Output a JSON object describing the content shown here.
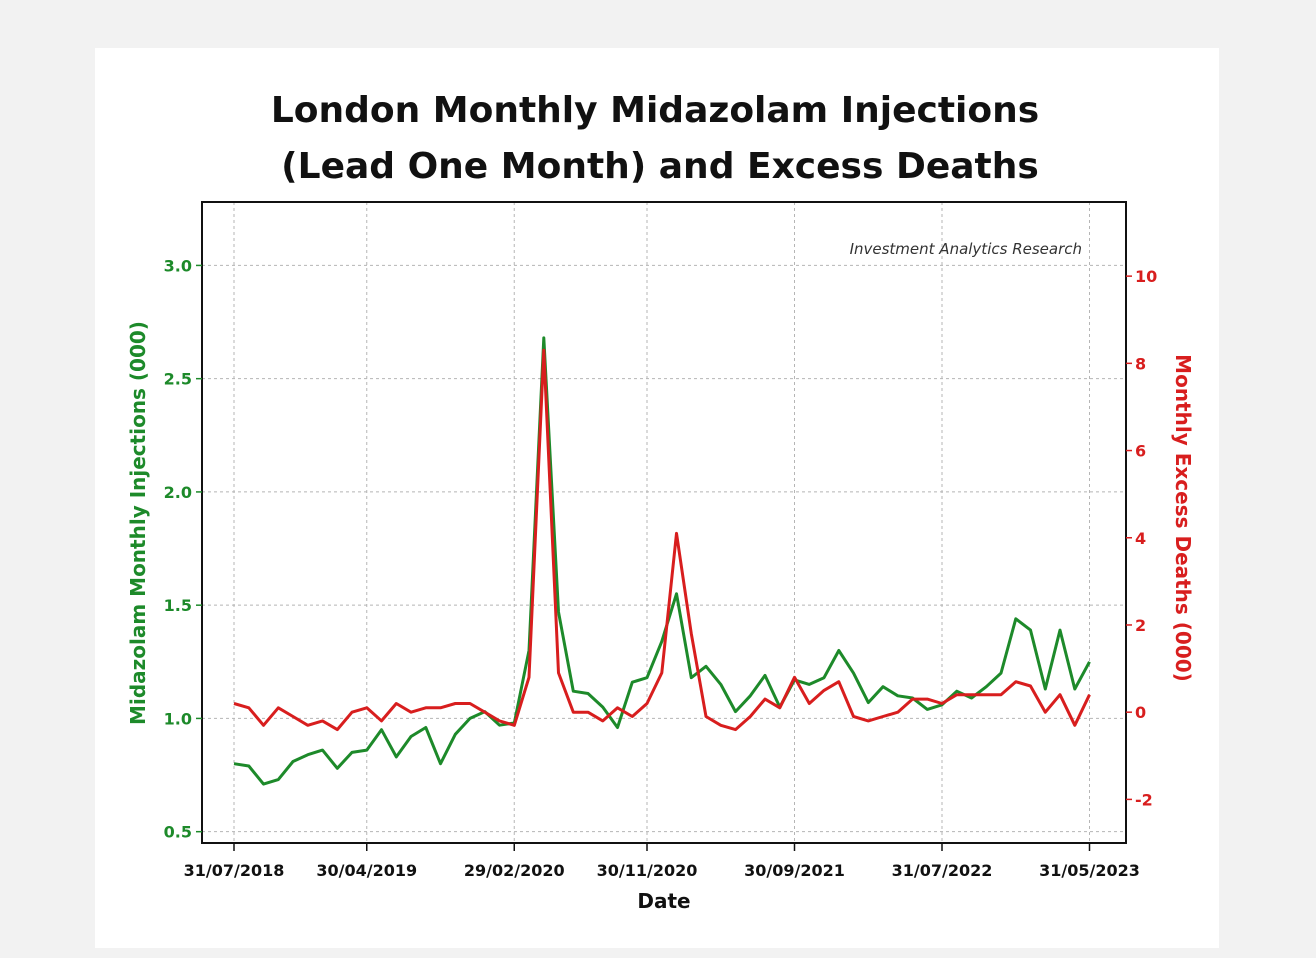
{
  "chart_data": {
    "type": "line",
    "title": [
      "London Monthly Midazolam Injections",
      "(Lead One Month) and Excess Deaths"
    ],
    "watermark": "Investment Analytics Research",
    "xlabel": "Date",
    "ylabel_left": "Midazolam Monthly Injections (000)",
    "ylabel_right": "Monthly Excess Deaths (000)",
    "x_ticks": [
      "31/07/2018",
      "30/04/2019",
      "29/02/2020",
      "30/11/2020",
      "30/09/2021",
      "31/07/2022",
      "31/05/2023"
    ],
    "x_tick_index": [
      0,
      9,
      19,
      28,
      38,
      48,
      58
    ],
    "y_left": {
      "ticks": [
        "0.5",
        "1.0",
        "1.5",
        "2.0",
        "2.5",
        "3.0"
      ],
      "tick_values": [
        0.5,
        1.0,
        1.5,
        2.0,
        2.5,
        3.0
      ],
      "range": [
        0.45,
        3.28
      ]
    },
    "y_right": {
      "ticks": [
        "-2",
        "0",
        "2",
        "4",
        "6",
        "8",
        "10"
      ],
      "tick_values": [
        -2,
        0,
        2,
        4,
        6,
        8,
        10
      ],
      "range": [
        -3.0,
        11.7
      ]
    },
    "grid": true,
    "colors": {
      "injections": "#1d8a2a",
      "deaths": "#d81e1e"
    },
    "series": [
      {
        "name": "Midazolam Monthly Injections (000)",
        "axis": "left",
        "values": [
          0.8,
          0.79,
          0.71,
          0.73,
          0.81,
          0.84,
          0.86,
          0.78,
          0.85,
          0.86,
          0.95,
          0.83,
          0.92,
          0.96,
          0.8,
          0.93,
          1.0,
          1.03,
          0.97,
          0.98,
          1.3,
          2.68,
          1.47,
          1.12,
          1.11,
          1.05,
          0.96,
          1.16,
          1.18,
          1.34,
          1.55,
          1.18,
          1.23,
          1.15,
          1.03,
          1.1,
          1.19,
          1.05,
          1.17,
          1.15,
          1.18,
          1.3,
          1.2,
          1.07,
          1.14,
          1.1,
          1.09,
          1.04,
          1.06,
          1.12,
          1.09,
          1.14,
          1.2,
          1.44,
          1.39,
          1.13,
          1.39,
          1.13,
          1.25
        ]
      },
      {
        "name": "Monthly Excess Deaths (000)",
        "axis": "right",
        "values": [
          0.2,
          0.1,
          -0.3,
          0.1,
          -0.1,
          -0.3,
          -0.2,
          -0.4,
          0.0,
          0.1,
          -0.2,
          0.2,
          0.0,
          0.1,
          0.1,
          0.2,
          0.2,
          0.0,
          -0.2,
          -0.3,
          0.8,
          8.3,
          0.9,
          0.0,
          0.0,
          -0.2,
          0.1,
          -0.1,
          0.2,
          0.9,
          4.1,
          1.8,
          -0.1,
          -0.3,
          -0.4,
          -0.1,
          0.3,
          0.1,
          0.8,
          0.2,
          0.5,
          0.7,
          -0.1,
          -0.2,
          -0.1,
          0.0,
          0.3,
          0.3,
          0.2,
          0.4,
          0.4,
          0.4,
          0.4,
          0.7,
          0.6,
          0.0,
          0.4,
          -0.3,
          0.4
        ]
      }
    ]
  }
}
